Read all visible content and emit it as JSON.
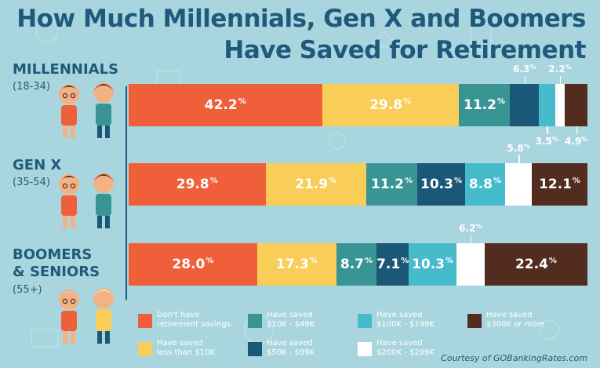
{
  "title_line1": "How Much Millennials, Gen X and Boomers",
  "title_line2": "Have Saved for Retirement",
  "courtesy": "Courtesy of GOBankingRates.com",
  "chart_data": {
    "type": "bar",
    "orientation": "horizontal",
    "stacked": true,
    "value_unit": "%",
    "categories": [
      {
        "name": "MILLENNIALS",
        "range": "(18-34)"
      },
      {
        "name": "GEN X",
        "range": "(35-54)"
      },
      {
        "name": "BOOMERS\n& SENIORS",
        "range": "(55+)"
      }
    ],
    "series": [
      {
        "name": "Don't have\nretirement savings",
        "color": "#ef5f3a",
        "values": [
          "42.2",
          "29.8",
          "28.0"
        ]
      },
      {
        "name": "Have saved\nless than $10K",
        "color": "#f9ce58",
        "values": [
          "29.8",
          "21.9",
          "17.3"
        ]
      },
      {
        "name": "Have saved\n$10K - $49K",
        "color": "#399594",
        "values": [
          "11.2",
          "11.2",
          "8.7"
        ]
      },
      {
        "name": "Have saved\n$50K - $99K",
        "color": "#1b5878",
        "values": [
          "6.3",
          "10.3",
          "7.1"
        ]
      },
      {
        "name": "Have saved\n$100K - $199K",
        "color": "#45bbcc",
        "values": [
          "3.5",
          "8.8",
          "10.3"
        ]
      },
      {
        "name": "Have saved\n$200K - $299K",
        "color": "#ffffff",
        "values": [
          "2.2",
          "5.8",
          "6.2"
        ]
      },
      {
        "name": "Have saved\n$300K or more",
        "color": "#522c1f",
        "values": [
          "4.9",
          "12.1",
          "22.4"
        ]
      }
    ],
    "legend": "bottom",
    "grid": false
  }
}
